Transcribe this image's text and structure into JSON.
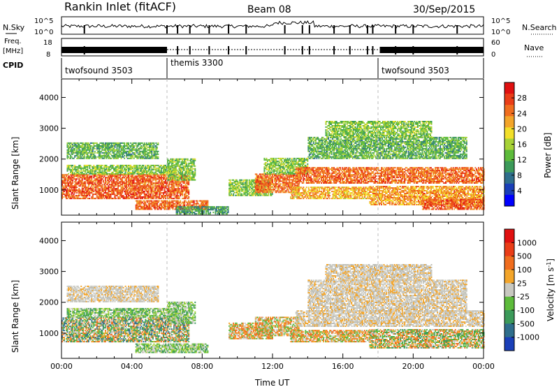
{
  "header": {
    "station": "Rankin Inlet (fitACF)",
    "beam": "Beam 08",
    "date": "30/Sep/2015"
  },
  "noise_panel": {
    "left_label": "N.Sky",
    "right_label": "N.Search",
    "left_ticks": [
      "10^5",
      "10^0"
    ],
    "right_ticks": [
      "10^5",
      "10^0"
    ]
  },
  "freq_panel": {
    "left_label_1": "Freq.",
    "left_label_2": "[MHz]",
    "right_label": "Nave",
    "left_ticks": [
      "18",
      "8"
    ],
    "right_ticks": [
      "60",
      "0"
    ]
  },
  "cpid": {
    "label": "CPID",
    "segments": [
      {
        "name": "twofsound 3503",
        "start_hour": 0,
        "end_hour": 6
      },
      {
        "name": "themis 3300",
        "start_hour": 6,
        "end_hour": 18
      },
      {
        "name": "twofsound 3503",
        "start_hour": 18,
        "end_hour": 24
      }
    ]
  },
  "chart_data": [
    {
      "type": "heatmap",
      "name": "power-panel",
      "ylabel": "Slant Range [km]",
      "xlabel": "",
      "ylim": [
        180,
        4600
      ],
      "xlim": [
        0,
        24
      ],
      "yticks": [
        "1000",
        "2000",
        "3000",
        "4000"
      ],
      "colorbar": {
        "label": "Power [dB]",
        "ticks": [
          "28",
          "24",
          "20",
          "16",
          "12",
          "8",
          "4"
        ],
        "range": [
          0,
          32
        ],
        "colors": [
          "#0000ff",
          "#1a3fb8",
          "#2f6e8c",
          "#3c9a5a",
          "#5dbb3b",
          "#a7d236",
          "#f2df2a",
          "#f3a52a",
          "#f06d1e",
          "#ea3d17",
          "#e01010"
        ]
      },
      "bands": [
        {
          "t0": 0,
          "t1": 7.2,
          "r0": 700,
          "r1": 1500,
          "level": 27
        },
        {
          "t0": 0.3,
          "t1": 6.5,
          "r0": 1500,
          "r1": 1800,
          "level": 14
        },
        {
          "t0": 0.3,
          "t1": 5.5,
          "r0": 2000,
          "r1": 2500,
          "level": 12
        },
        {
          "t0": 4.2,
          "t1": 8.3,
          "r0": 350,
          "r1": 650,
          "level": 26
        },
        {
          "t0": 6.0,
          "t1": 7.6,
          "r0": 1300,
          "r1": 2000,
          "level": 14
        },
        {
          "t0": 6.5,
          "t1": 9.5,
          "r0": 200,
          "r1": 450,
          "level": 10
        },
        {
          "t0": 9.5,
          "t1": 12.0,
          "r0": 800,
          "r1": 1300,
          "level": 14
        },
        {
          "t0": 11.0,
          "t1": 13.5,
          "r0": 900,
          "r1": 1500,
          "level": 26
        },
        {
          "t0": 11.5,
          "t1": 14.0,
          "r0": 1500,
          "r1": 2000,
          "level": 14
        },
        {
          "t0": 13.3,
          "t1": 24.0,
          "r0": 1200,
          "r1": 1700,
          "level": 26
        },
        {
          "t0": 13.0,
          "t1": 17.5,
          "r0": 700,
          "r1": 1100,
          "level": 22
        },
        {
          "t0": 14.0,
          "t1": 23.0,
          "r0": 2000,
          "r1": 2700,
          "level": 12
        },
        {
          "t0": 17.5,
          "t1": 24.0,
          "r0": 500,
          "r1": 1100,
          "level": 23
        },
        {
          "t0": 20.5,
          "t1": 24.0,
          "r0": 350,
          "r1": 700,
          "level": 27
        },
        {
          "t0": 15.0,
          "t1": 21.0,
          "r0": 2700,
          "r1": 3200,
          "level": 14
        }
      ]
    },
    {
      "type": "heatmap",
      "name": "velocity-panel",
      "ylabel": "Slant Range [km]",
      "xlabel": "Time UT",
      "ylim": [
        180,
        4600
      ],
      "xlim": [
        0,
        24
      ],
      "yticks": [
        "1000",
        "2000",
        "3000",
        "4000"
      ],
      "xticks": [
        "00:00",
        "04:00",
        "08:00",
        "12:00",
        "16:00",
        "20:00",
        "00:00"
      ],
      "colorbar": {
        "label": "Velocity [m s^-1]",
        "ticks": [
          "1000",
          "500",
          "100",
          "25",
          "-25",
          "-100",
          "-500",
          "-1000"
        ],
        "colors": [
          "#1a3fb8",
          "#2f6e8c",
          "#3c9a5a",
          "#5dbb3b",
          "#c8c8c0",
          "#f3a52a",
          "#f06d1e",
          "#ea3d17",
          "#e01010"
        ]
      },
      "bands": [
        {
          "t0": 0,
          "t1": 7.2,
          "r0": 700,
          "r1": 1500,
          "level": "mixed-green-orange"
        },
        {
          "t0": 0.3,
          "t1": 6.5,
          "r0": 1500,
          "r1": 1800,
          "level": "green"
        },
        {
          "t0": 0.3,
          "t1": 5.5,
          "r0": 2000,
          "r1": 2500,
          "level": "grey"
        },
        {
          "t0": 4.2,
          "t1": 8.3,
          "r0": 350,
          "r1": 650,
          "level": "green"
        },
        {
          "t0": 6.0,
          "t1": 7.6,
          "r0": 1300,
          "r1": 2000,
          "level": "green"
        },
        {
          "t0": 9.5,
          "t1": 12.0,
          "r0": 800,
          "r1": 1300,
          "level": "orange"
        },
        {
          "t0": 11.0,
          "t1": 13.5,
          "r0": 900,
          "r1": 1500,
          "level": "orange"
        },
        {
          "t0": 13.3,
          "t1": 24.0,
          "r0": 1200,
          "r1": 1700,
          "level": "grey"
        },
        {
          "t0": 13.0,
          "t1": 17.5,
          "r0": 700,
          "r1": 1100,
          "level": "orange"
        },
        {
          "t0": 14.0,
          "t1": 23.0,
          "r0": 1700,
          "r1": 2700,
          "level": "grey"
        },
        {
          "t0": 17.5,
          "t1": 24.0,
          "r0": 500,
          "r1": 1100,
          "level": "green-orange"
        },
        {
          "t0": 15.0,
          "t1": 21.0,
          "r0": 2700,
          "r1": 3200,
          "level": "grey"
        }
      ]
    }
  ]
}
